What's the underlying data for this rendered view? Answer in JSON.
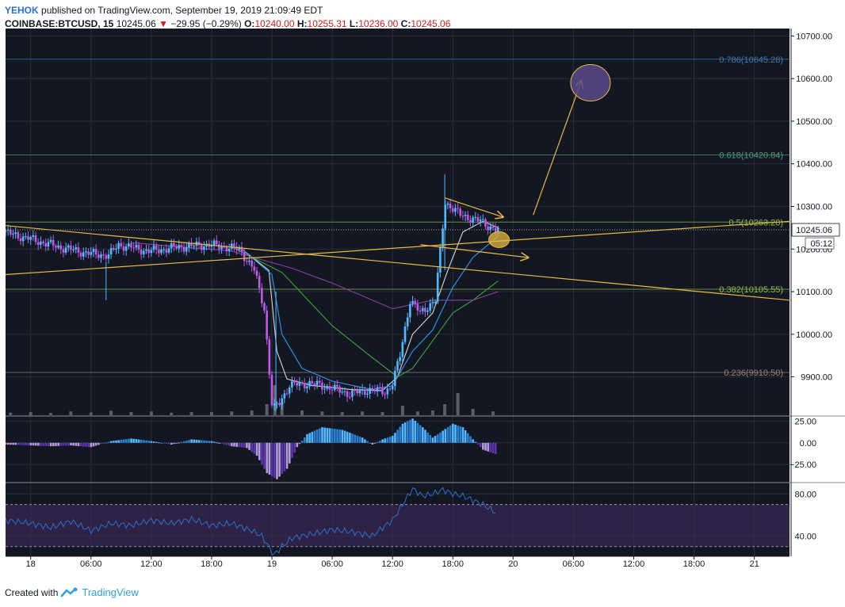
{
  "header": {
    "author": "YEHOK",
    "published": "published on TradingView.com, September 19, 2019 21:09:49 EDT",
    "symbol": "COINBASE:BTCUSD, 15",
    "last": "10245.06",
    "change": "−29.95 (−0.29%)",
    "o_label": "O:",
    "o": "10240.00",
    "h_label": "H:",
    "h": "10255.31",
    "l_label": "L:",
    "l": "10236.00",
    "c_label": "C:",
    "c": "10245.06"
  },
  "footer": {
    "created_with": "Created with",
    "brand": "TradingView"
  },
  "colors": {
    "background": "#131722",
    "grid": "#2a2e39",
    "candle_up": "#53b9ff",
    "candle_down": "#c058e8",
    "trendline": "#e8b941",
    "fib_0786": "#3d7ab0",
    "fib_0618": "#4f9e76",
    "fib_05": "#8bbf4a",
    "fib_0382": "#8bbf4a",
    "fib_0236": "#9a7f7a",
    "ma_fast": "#d8d8d8",
    "ma_mid": "#2c9af0",
    "ma_slow": "#3fa33f",
    "ma_long": "#8b3fa0",
    "rsi_line": "#2c6fc6",
    "rsi_band": "#3a2a55",
    "target_ellipse": "#5a4a8a"
  },
  "chart_data": [
    {
      "type": "candlestick",
      "title": "",
      "y_axis_labels": [
        "10700.00",
        "10600.00",
        "10500.00",
        "10400.00",
        "10300.00",
        "10200.00",
        "10100.00",
        "10000.00",
        "9900.00"
      ],
      "ylim": [
        9810,
        10710
      ],
      "x_tick_labels": [
        "18",
        "06:00",
        "12:00",
        "18:00",
        "19",
        "06:00",
        "12:00",
        "18:00",
        "20",
        "06:00",
        "12:00",
        "18:00",
        "21"
      ],
      "x_tick_hours": [
        0,
        6,
        12,
        18,
        24,
        30,
        36,
        42,
        48,
        54,
        60,
        66,
        72
      ],
      "x_range_hours": [
        -2.5,
        75.5
      ],
      "last_price_label": "10245.06",
      "countdown_label": "05:12",
      "fib_levels": [
        {
          "label": "0.786(10645.28)",
          "value": 10645.28
        },
        {
          "label": "0.618(10420.84)",
          "value": 10420.84
        },
        {
          "label": "0.5(10263.20)",
          "value": 10263.2
        },
        {
          "label": "0.382(10105.55)",
          "value": 10105.55
        },
        {
          "label": "0.236(9910.50)",
          "value": 9910.5
        }
      ],
      "price_path": [
        [
          -2.5,
          10240
        ],
        [
          0,
          10225
        ],
        [
          3,
          10205
        ],
        [
          6,
          10190
        ],
        [
          8,
          10185
        ],
        [
          9,
          10210
        ],
        [
          12,
          10195
        ],
        [
          15,
          10205
        ],
        [
          18,
          10210
        ],
        [
          21,
          10200
        ],
        [
          22.5,
          10150
        ],
        [
          23.5,
          10060
        ],
        [
          24.3,
          9820
        ],
        [
          25,
          9840
        ],
        [
          26,
          9880
        ],
        [
          28,
          9885
        ],
        [
          30,
          9875
        ],
        [
          32,
          9860
        ],
        [
          34,
          9870
        ],
        [
          35.5,
          9865
        ],
        [
          36.2,
          9880
        ],
        [
          37,
          9950
        ],
        [
          38,
          10080
        ],
        [
          39,
          10050
        ],
        [
          40.5,
          10080
        ],
        [
          41.5,
          10310
        ],
        [
          43,
          10280
        ],
        [
          45,
          10265
        ],
        [
          46.5,
          10245
        ]
      ],
      "candle_wicks": [
        [
          41.2,
          10375,
          10150
        ],
        [
          7.5,
          10170,
          10080
        ],
        [
          24.4,
          10100,
          9820
        ]
      ],
      "moving_averages": [
        {
          "role": "fast",
          "points": [
            [
              21,
              10200
            ],
            [
              23.7,
              10150
            ],
            [
              24.5,
              9960
            ],
            [
              25.5,
              9895
            ],
            [
              28,
              9880
            ],
            [
              32,
              9870
            ],
            [
              35,
              9868
            ],
            [
              36.5,
              9900
            ],
            [
              38,
              10000
            ],
            [
              40,
              10050
            ],
            [
              41.5,
              10150
            ],
            [
              43,
              10240
            ],
            [
              45,
              10265
            ],
            [
              46.5,
              10250
            ]
          ]
        },
        {
          "role": "mid",
          "points": [
            [
              21,
              10200
            ],
            [
              24,
              10140
            ],
            [
              25,
              10000
            ],
            [
              27,
              9920
            ],
            [
              30,
              9890
            ],
            [
              34,
              9870
            ],
            [
              36,
              9880
            ],
            [
              38,
              9960
            ],
            [
              40,
              10010
            ],
            [
              42,
              10110
            ],
            [
              44,
              10180
            ],
            [
              46.5,
              10230
            ]
          ]
        },
        {
          "role": "slow",
          "points": [
            [
              20,
              10205
            ],
            [
              25,
              10145
            ],
            [
              30,
              10020
            ],
            [
              34,
              9945
            ],
            [
              36.5,
              9900
            ],
            [
              38,
              9920
            ],
            [
              40,
              9985
            ],
            [
              42,
              10050
            ],
            [
              44,
              10080
            ],
            [
              46.5,
              10125
            ]
          ]
        },
        {
          "role": "long",
          "points": [
            [
              10,
              10215
            ],
            [
              20,
              10195
            ],
            [
              26,
              10155
            ],
            [
              30,
              10120
            ],
            [
              34,
              10080
            ],
            [
              36,
              10060
            ],
            [
              40,
              10080
            ],
            [
              44,
              10080
            ],
            [
              46.5,
              10100
            ]
          ]
        }
      ],
      "trendlines": [
        {
          "from": [
            -2.5,
            10140
          ],
          "to": [
            75.5,
            10265
          ]
        },
        {
          "from": [
            -2.5,
            10255
          ],
          "to": [
            75.5,
            10080
          ]
        },
        {
          "from": [
            41.2,
            10320
          ],
          "to": [
            47.0,
            10275
          ],
          "arrow": true
        },
        {
          "from": [
            38.8,
            10210
          ],
          "to": [
            49.5,
            10180
          ],
          "arrow": true
        },
        {
          "from": [
            50.0,
            10280
          ],
          "to": [
            54.8,
            10595
          ],
          "arrow": true
        }
      ],
      "highlight_circle": {
        "center": [
          46.6,
          10222
        ],
        "note": "current price"
      },
      "target_ellipse": {
        "center": [
          55.7,
          10590
        ]
      },
      "volume": [
        [
          -2,
          0.08
        ],
        [
          0,
          0.1
        ],
        [
          2,
          0.07
        ],
        [
          4,
          0.12
        ],
        [
          6,
          0.09
        ],
        [
          8,
          0.14
        ],
        [
          10,
          0.1
        ],
        [
          12,
          0.12
        ],
        [
          14,
          0.08
        ],
        [
          16,
          0.1
        ],
        [
          18,
          0.1
        ],
        [
          20,
          0.12
        ],
        [
          22,
          0.15
        ],
        [
          23.5,
          0.35
        ],
        [
          24.3,
          0.95
        ],
        [
          25,
          0.4
        ],
        [
          27,
          0.15
        ],
        [
          29,
          0.12
        ],
        [
          31,
          0.1
        ],
        [
          33,
          0.12
        ],
        [
          35,
          0.1
        ],
        [
          37,
          0.3
        ],
        [
          38.5,
          0.12
        ],
        [
          40,
          0.15
        ],
        [
          41.2,
          0.35
        ],
        [
          42.5,
          0.7
        ],
        [
          44,
          0.2
        ],
        [
          46,
          0.12
        ]
      ]
    },
    {
      "type": "histogram",
      "title": "",
      "y_axis_labels": [
        "25.00",
        "0.00",
        "−25.00"
      ],
      "ylim": [
        -45,
        30
      ],
      "values": [
        [
          -2.5,
          -2
        ],
        [
          0,
          -3
        ],
        [
          2,
          -4
        ],
        [
          4,
          -3
        ],
        [
          6,
          -5
        ],
        [
          8,
          2
        ],
        [
          10,
          5
        ],
        [
          12,
          2
        ],
        [
          14,
          -2
        ],
        [
          16,
          4
        ],
        [
          18,
          2
        ],
        [
          20,
          -4
        ],
        [
          21.5,
          -6
        ],
        [
          22.5,
          -15
        ],
        [
          23.5,
          -35
        ],
        [
          24.5,
          -42
        ],
        [
          25.5,
          -30
        ],
        [
          26.5,
          -5
        ],
        [
          27.5,
          10
        ],
        [
          29,
          18
        ],
        [
          31,
          15
        ],
        [
          33,
          6
        ],
        [
          34,
          -2
        ],
        [
          35,
          4
        ],
        [
          36,
          8
        ],
        [
          37,
          22
        ],
        [
          38,
          28
        ],
        [
          39,
          18
        ],
        [
          40,
          6
        ],
        [
          41,
          14
        ],
        [
          42,
          22
        ],
        [
          43,
          18
        ],
        [
          44,
          4
        ],
        [
          45,
          -8
        ],
        [
          46.5,
          -14
        ]
      ]
    },
    {
      "type": "line",
      "title": "",
      "y_axis_labels": [
        "80.00",
        "40.00"
      ],
      "ylim": [
        20,
        90
      ],
      "band": [
        30,
        70
      ],
      "values": [
        [
          -2.5,
          55
        ],
        [
          0,
          52
        ],
        [
          2,
          48
        ],
        [
          4,
          54
        ],
        [
          6,
          45
        ],
        [
          8,
          52
        ],
        [
          10,
          50
        ],
        [
          12,
          55
        ],
        [
          14,
          52
        ],
        [
          16,
          56
        ],
        [
          18,
          50
        ],
        [
          20,
          52
        ],
        [
          22,
          45
        ],
        [
          23,
          40
        ],
        [
          24.2,
          22
        ],
        [
          25,
          30
        ],
        [
          26,
          38
        ],
        [
          28,
          42
        ],
        [
          30,
          46
        ],
        [
          32,
          44
        ],
        [
          34,
          40
        ],
        [
          35,
          48
        ],
        [
          36,
          55
        ],
        [
          37,
          70
        ],
        [
          38,
          85
        ],
        [
          39,
          78
        ],
        [
          40,
          80
        ],
        [
          41,
          84
        ],
        [
          42,
          80
        ],
        [
          43,
          78
        ],
        [
          44,
          74
        ],
        [
          45,
          70
        ],
        [
          46,
          64
        ],
        [
          46.5,
          60
        ]
      ]
    }
  ]
}
